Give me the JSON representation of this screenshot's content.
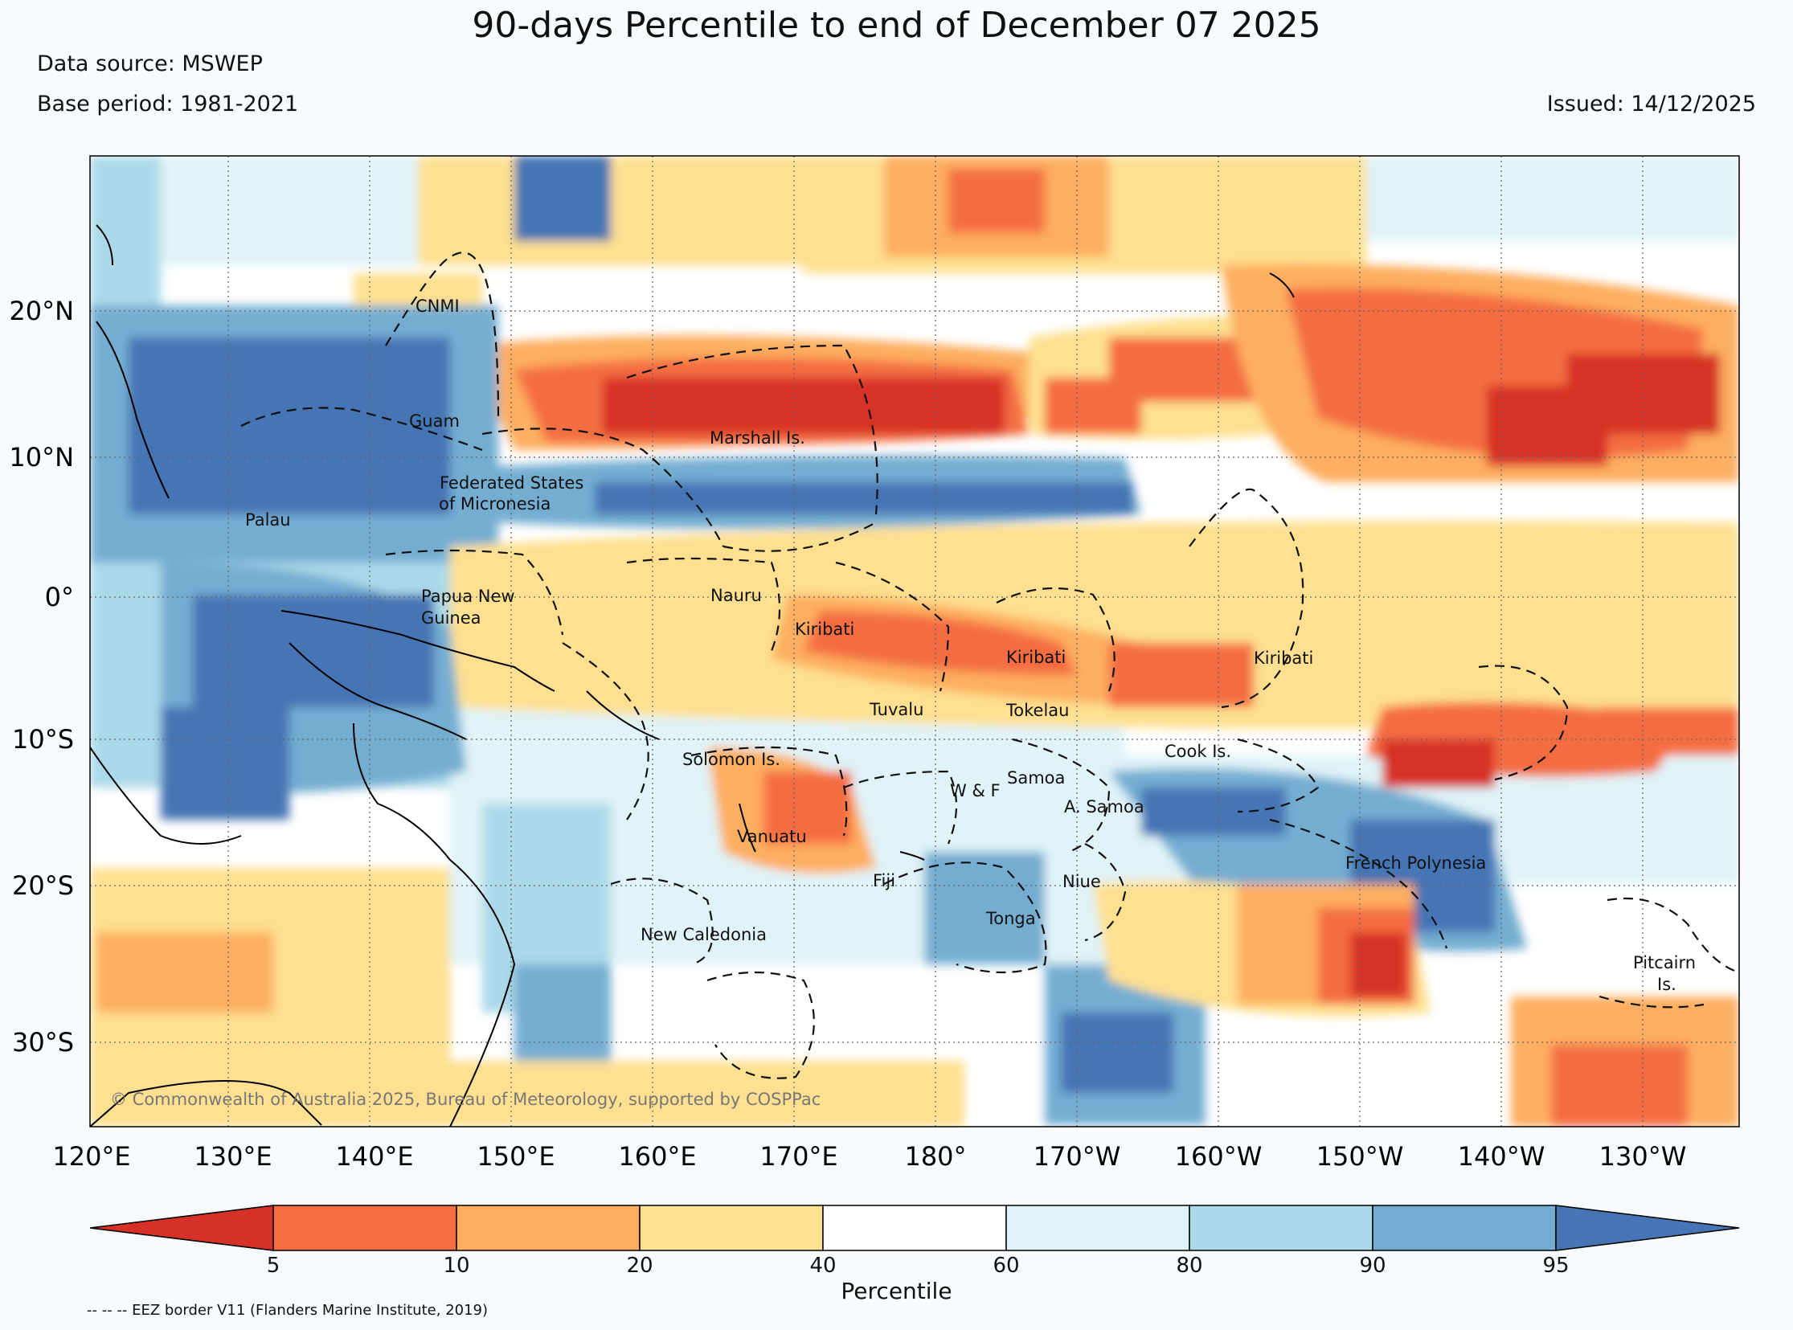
{
  "title": "90-days Percentile to end of December 07 2025",
  "data_source": "Data source: MSWEP",
  "base_period": "Base period: 1981-2021",
  "issued": "Issued: 14/12/2025",
  "copyright": "© Commonwealth of Australia 2025, Bureau of Meteorology, supported by COSPPac",
  "footnote": "-- -- -- EEZ border V11 (Flanders Marine Institute, 2019)",
  "lat_ticks": [
    "20°N",
    "10°N",
    "0°",
    "10°S",
    "20°S",
    "30°S"
  ],
  "lon_ticks": [
    "120°E",
    "130°E",
    "140°E",
    "150°E",
    "160°E",
    "170°E",
    "180°",
    "170°W",
    "160°W",
    "150°W",
    "140°W",
    "130°W"
  ],
  "regions": {
    "cnmi": "CNMI",
    "guam": "Guam",
    "marshall": "Marshall Is.",
    "fsm1": "Federated States",
    "fsm2": "of Micronesia",
    "palau": "Palau",
    "png1": "Papua New",
    "png2": "Guinea",
    "nauru": "Nauru",
    "kiribati_w": "Kiribati",
    "kiribati_c": "Kiribati",
    "kiribati_e": "Kiribati",
    "tuvalu": "Tuvalu",
    "tokelau": "Tokelau",
    "solomon": "Solomon Is.",
    "samoa": "Samoa",
    "wf": "W & F",
    "asamoa": "A. Samoa",
    "cook": "Cook Is.",
    "vanuatu": "Vanuatu",
    "fiji": "Fiji",
    "niue": "Niue",
    "tonga": "Tonga",
    "fp": "French Polynesia",
    "newcal": "New Caledonia",
    "pitcairn1": "Pitcairn",
    "pitcairn2": "Is."
  },
  "colorbar": {
    "label": "Percentile",
    "ticks": [
      "5",
      "10",
      "20",
      "40",
      "60",
      "80",
      "90",
      "95"
    ],
    "colors": [
      "#d73027",
      "#f46d43",
      "#fdae61",
      "#fee090",
      "#ffffff",
      "#e0f3f8",
      "#abd9e9",
      "#74add1",
      "#4575b4"
    ]
  }
}
